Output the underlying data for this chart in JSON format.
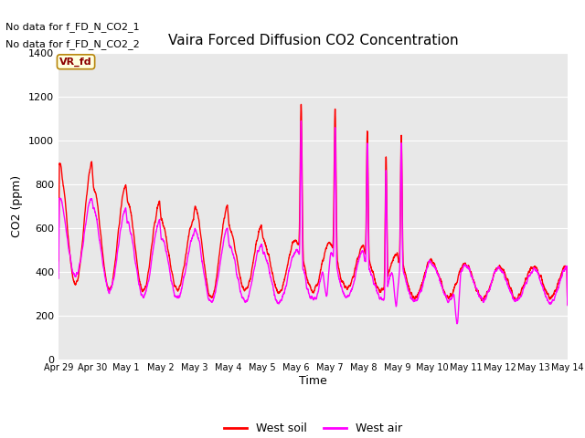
{
  "title": "Vaira Forced Diffusion CO2 Concentration",
  "xlabel": "Time",
  "ylabel": "CO2 (ppm)",
  "ylim": [
    0,
    1400
  ],
  "yticks": [
    0,
    200,
    400,
    600,
    800,
    1000,
    1200,
    1400
  ],
  "text_annotations": [
    "No data for f_FD_N_CO2_1",
    "No data for f_FD_N_CO2_2"
  ],
  "legend_label_box": "VR_fd",
  "legend_entries": [
    "West soil",
    "West air"
  ],
  "line_colors": [
    "#ff0000",
    "#ff00ff"
  ],
  "xtick_labels": [
    "Apr 29",
    "Apr 30",
    "May 1",
    "May 2",
    "May 3",
    "May 4",
    "May 5",
    "May 6",
    "May 7",
    "May 8",
    "May 9",
    "May 10",
    "May 11",
    "May 12",
    "May 13",
    "May 14"
  ],
  "num_points": 4000
}
